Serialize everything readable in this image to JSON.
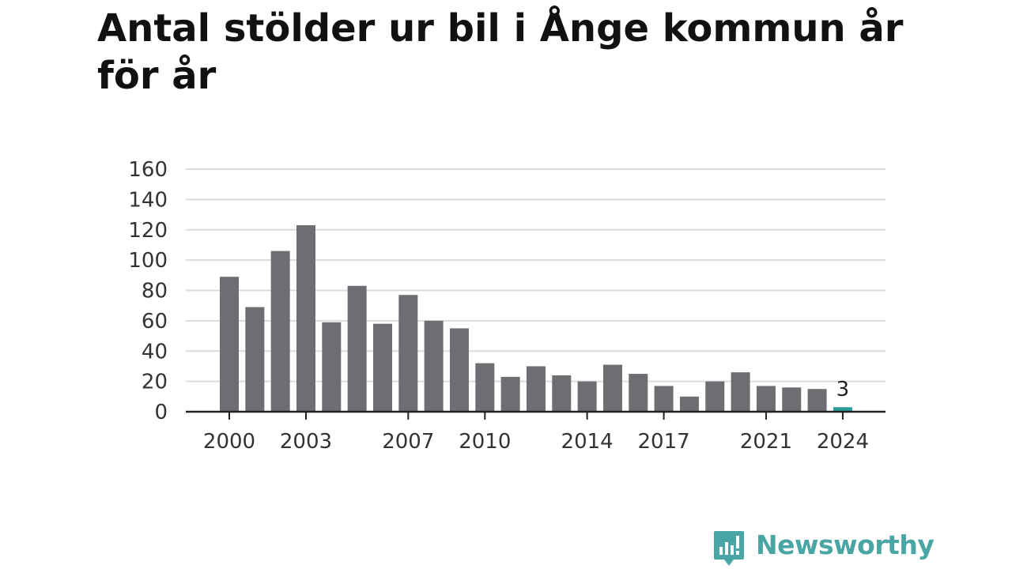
{
  "chart_data": {
    "type": "bar",
    "title": "Antal stölder ur bil i Ånge kommun år för år",
    "categories": [
      "2000",
      "2001",
      "2002",
      "2003",
      "2004",
      "2005",
      "2006",
      "2007",
      "2008",
      "2009",
      "2010",
      "2011",
      "2012",
      "2013",
      "2014",
      "2015",
      "2016",
      "2017",
      "2018",
      "2019",
      "2020",
      "2021",
      "2022",
      "2023",
      "2024"
    ],
    "values": [
      89,
      69,
      106,
      123,
      59,
      83,
      58,
      77,
      60,
      55,
      32,
      23,
      30,
      24,
      20,
      31,
      25,
      17,
      10,
      20,
      26,
      17,
      16,
      15,
      3
    ],
    "x_tick_labels": [
      "2000",
      "2003",
      "2007",
      "2010",
      "2014",
      "2017",
      "2021",
      "2024"
    ],
    "y_ticks": [
      0,
      20,
      40,
      60,
      80,
      100,
      120,
      140,
      160
    ],
    "ylim": [
      0,
      160
    ],
    "xlabel": "",
    "ylabel": "",
    "grid": true,
    "highlight": {
      "category": "2024",
      "value_label": "3"
    },
    "colors": {
      "bar": "#6e6d72",
      "highlight": "#2a9d99",
      "grid": "#dcdcdc",
      "axis": "#222222"
    }
  },
  "brand": {
    "name": "Newsworthy",
    "color": "#4aa5a5"
  }
}
